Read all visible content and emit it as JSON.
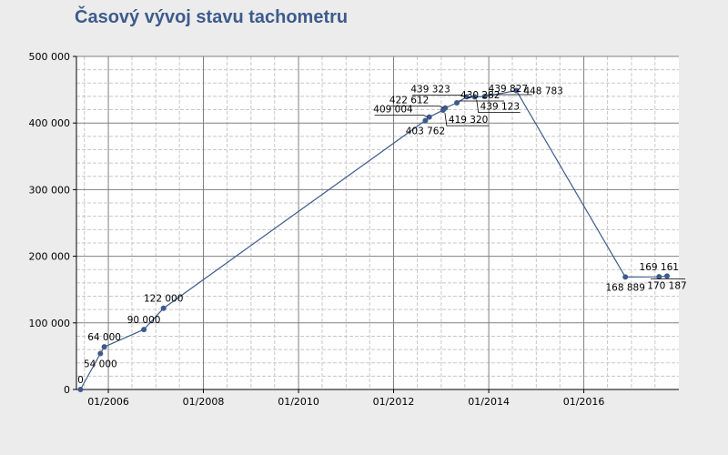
{
  "chart_data": {
    "type": "line",
    "title": "Časový vývoj stavu tachometru",
    "xlabel": "",
    "ylabel": "",
    "xlim": [
      "2005-05-01",
      "2017-12-31"
    ],
    "ylim": [
      0,
      500000
    ],
    "grid": true,
    "legend": "none",
    "x_ticks": [
      {
        "value": "2006-01-01",
        "label": "01/2006"
      },
      {
        "value": "2008-01-01",
        "label": "01/2008"
      },
      {
        "value": "2010-01-01",
        "label": "01/2010"
      },
      {
        "value": "2012-01-01",
        "label": "01/2012"
      },
      {
        "value": "2014-01-01",
        "label": "01/2014"
      },
      {
        "value": "2016-01-01",
        "label": "01/2016"
      }
    ],
    "y_ticks": [
      {
        "value": 0,
        "label": "0"
      },
      {
        "value": 100000,
        "label": "100 000"
      },
      {
        "value": 200000,
        "label": "200 000"
      },
      {
        "value": 300000,
        "label": "300 000"
      },
      {
        "value": 400000,
        "label": "400 000"
      },
      {
        "value": 500000,
        "label": "500 000"
      }
    ],
    "colors": {
      "line": "#3d5b8c",
      "marker": "#3d5b8c",
      "major_grid": "#808080",
      "minor_grid": "#c8c8c8",
      "plot_background": "#ffffff",
      "page_background": "#ececec"
    },
    "points": [
      {
        "x": "2005-06-01",
        "y": 0,
        "label": "0",
        "pos": "above"
      },
      {
        "x": "2005-11-01",
        "y": 54000,
        "label": "54 000",
        "pos": "below"
      },
      {
        "x": "2005-12-01",
        "y": 64000,
        "label": "64 000",
        "pos": "above"
      },
      {
        "x": "2006-10-01",
        "y": 90000,
        "label": "90 000",
        "pos": "above"
      },
      {
        "x": "2007-03-01",
        "y": 122000,
        "label": "122 000",
        "pos": "above"
      },
      {
        "x": "2012-09-01",
        "y": 403762,
        "label": "403 762",
        "pos": "below"
      },
      {
        "x": "2012-10-01",
        "y": 409004,
        "label": "409 004",
        "pos": "callout-left"
      },
      {
        "x": "2013-01-15",
        "y": 419320,
        "label": "419 320",
        "pos": "callout-right-below"
      },
      {
        "x": "2013-02-01",
        "y": 422612,
        "label": "422 612",
        "pos": "callout-left"
      },
      {
        "x": "2013-05-01",
        "y": 430282,
        "label": "430 282",
        "pos": "callout-right"
      },
      {
        "x": "2013-07-15",
        "y": 439323,
        "label": "439 323",
        "pos": "callout-left"
      },
      {
        "x": "2013-09-15",
        "y": 439123,
        "label": "439 123",
        "pos": "callout-right-below"
      },
      {
        "x": "2013-12-01",
        "y": 439827,
        "label": "439 827",
        "pos": "callout-right"
      },
      {
        "x": "2014-08-01",
        "y": 448783,
        "label": "448 783",
        "pos": "right"
      },
      {
        "x": "2016-11-15",
        "y": 168889,
        "label": "168 889",
        "pos": "below"
      },
      {
        "x": "2017-08-01",
        "y": 169161,
        "label": "169 161",
        "pos": "above"
      },
      {
        "x": "2017-10-01",
        "y": 170187,
        "label": "170 187",
        "pos": "below-callout"
      }
    ]
  }
}
